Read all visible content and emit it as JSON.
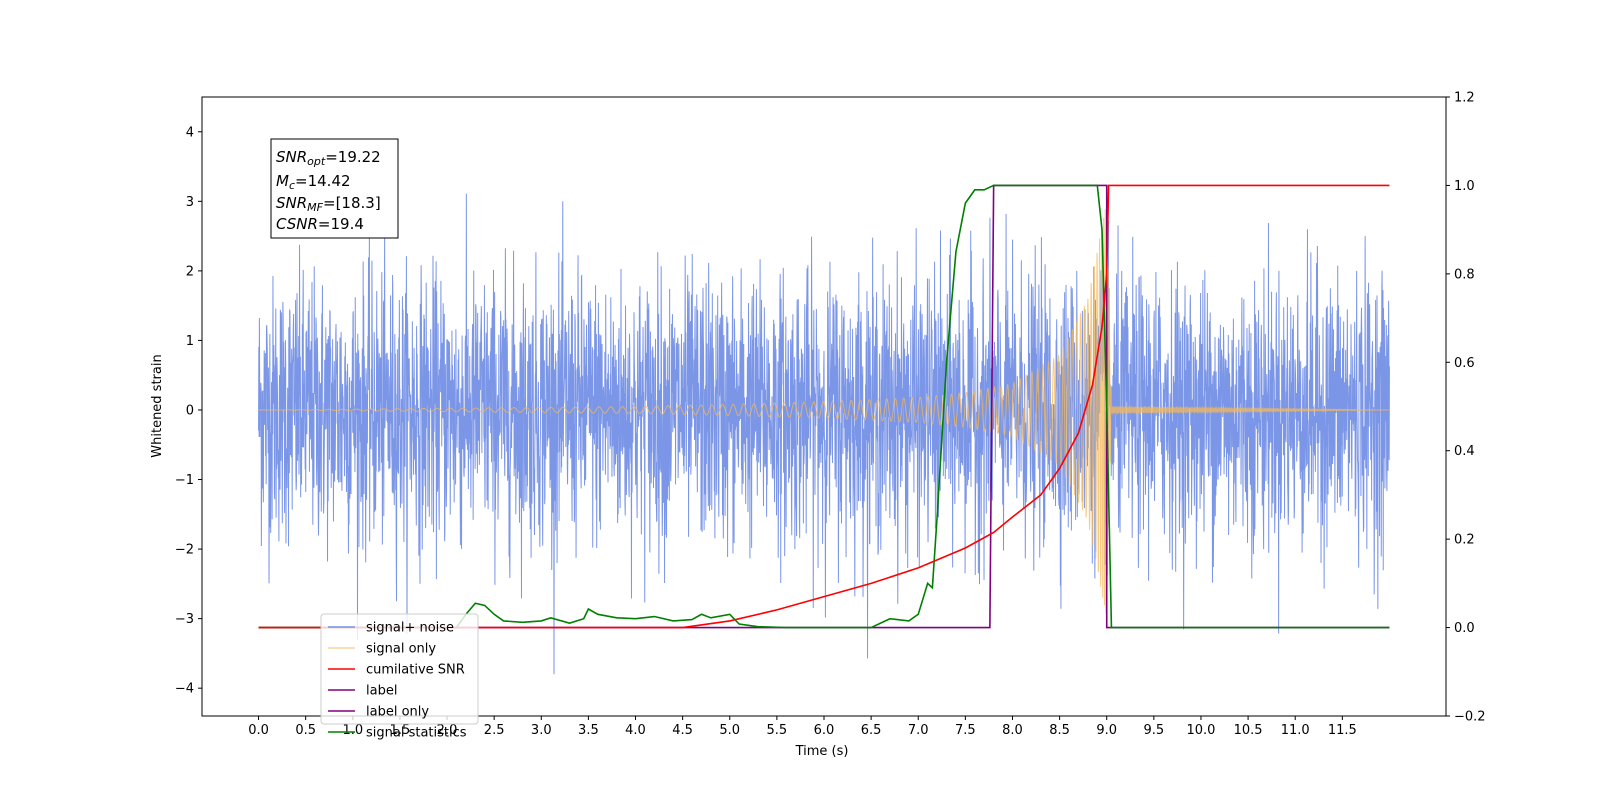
{
  "chart_data": {
    "type": "line",
    "xlabel": "Time (s)",
    "ylabel_left": "Whitened strain",
    "ylabel_right": "",
    "xlim": [
      -0.6,
      12.6
    ],
    "ylim_left": [
      -4.4,
      4.5
    ],
    "ylim_right": [
      -0.2,
      1.2
    ],
    "x_ticks": [
      "0.0",
      "0.5",
      "1.0",
      "1.5",
      "2.0",
      "2.5",
      "3.0",
      "3.5",
      "4.0",
      "4.5",
      "5.0",
      "5.5",
      "6.0",
      "6.5",
      "7.0",
      "7.5",
      "8.0",
      "8.5",
      "9.0",
      "9.5",
      "10.0",
      "10.5",
      "11.0",
      "11.5"
    ],
    "y_ticks_left": [
      "4",
      "3",
      "2",
      "1",
      "0",
      "−1",
      "−2",
      "−3",
      "−4"
    ],
    "y_ticks_right": [
      "1.2",
      "1.0",
      "0.8",
      "0.6",
      "0.4",
      "0.2",
      "0.0",
      "−0.2"
    ],
    "grid": false,
    "legend_position": "lower-left",
    "info_box": {
      "snr_opt_prefix": "SNR",
      "snr_opt_sub": "opt",
      "snr_opt_value": "=19.22",
      "mc_prefix": "M",
      "mc_sub": "c",
      "mc_value": "=14.42",
      "snr_mf_prefix": "SNR",
      "snr_mf_sub": "MF",
      "snr_mf_value": "=[18.3]",
      "csnr_label": "CSNR",
      "csnr_value": "=19.4"
    },
    "series": [
      {
        "name": "signal+ noise",
        "axis": "left",
        "color": "#7490e6",
        "description_range": [
          -3.8,
          4.1
        ],
        "x": [
          0.0,
          12.0
        ],
        "noise_std": 1.0
      },
      {
        "name": "signal only",
        "axis": "left",
        "color": "#f5b857",
        "x": [
          0.0,
          4.0,
          5.0,
          6.0,
          7.0,
          7.5,
          8.0,
          8.5,
          8.8,
          9.0,
          9.05,
          12.0
        ],
        "amplitude": [
          0.0,
          0.05,
          0.08,
          0.12,
          0.18,
          0.25,
          0.38,
          0.8,
          1.6,
          3.0,
          0.05,
          0.0
        ]
      },
      {
        "name": "cumilative SNR",
        "axis": "right",
        "color": "#ff0000",
        "x": [
          0.0,
          4.5,
          5.0,
          5.5,
          6.0,
          6.5,
          7.0,
          7.5,
          7.8,
          8.0,
          8.3,
          8.5,
          8.7,
          8.85,
          8.95,
          9.0,
          9.02,
          12.0
        ],
        "y": [
          0.0,
          0.0,
          0.015,
          0.04,
          0.07,
          0.1,
          0.135,
          0.18,
          0.215,
          0.25,
          0.3,
          0.36,
          0.44,
          0.55,
          0.68,
          0.8,
          1.0,
          1.0
        ]
      },
      {
        "name": "label",
        "axis": "right",
        "color": "#800080",
        "x": [
          0.0,
          7.76,
          7.8,
          9.0,
          9.0,
          12.0
        ],
        "y": [
          0.0,
          0.0,
          1.0,
          1.0,
          0.0,
          0.0
        ]
      },
      {
        "name": "label only",
        "axis": "right",
        "color": "#800080",
        "x": [],
        "y": []
      },
      {
        "name": "signal statistics",
        "axis": "right",
        "color": "#008000",
        "x": [
          0.0,
          2.1,
          2.2,
          2.3,
          2.4,
          2.5,
          2.6,
          2.8,
          3.0,
          3.1,
          3.3,
          3.45,
          3.5,
          3.6,
          3.8,
          4.0,
          4.2,
          4.4,
          4.6,
          4.7,
          4.8,
          5.0,
          5.1,
          5.3,
          5.6,
          6.5,
          6.7,
          6.9,
          7.0,
          7.1,
          7.15,
          7.2,
          7.3,
          7.4,
          7.5,
          7.6,
          7.7,
          7.8,
          8.9,
          8.95,
          9.0,
          9.05,
          12.0
        ],
        "y": [
          0.0,
          0.0,
          0.03,
          0.055,
          0.05,
          0.03,
          0.015,
          0.012,
          0.015,
          0.022,
          0.01,
          0.02,
          0.042,
          0.03,
          0.022,
          0.02,
          0.025,
          0.015,
          0.018,
          0.03,
          0.022,
          0.03,
          0.008,
          0.002,
          0.0,
          0.0,
          0.02,
          0.015,
          0.03,
          0.1,
          0.09,
          0.25,
          0.6,
          0.85,
          0.96,
          0.99,
          0.99,
          1.0,
          1.0,
          0.9,
          0.5,
          0.0,
          0.0
        ]
      }
    ]
  }
}
